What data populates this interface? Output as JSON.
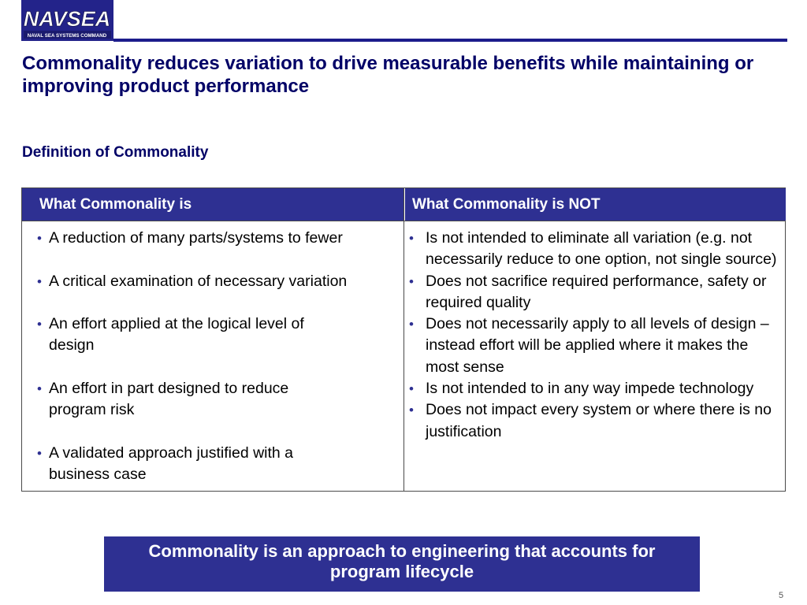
{
  "header": {
    "logo_text": "NAVSEA",
    "logo_subtext": "NAVAL SEA SYSTEMS COMMAND",
    "title": "Commonality reduces variation to drive measurable benefits while maintaining or improving product performance"
  },
  "section": {
    "heading": "Definition of Commonality"
  },
  "table": {
    "columns": [
      "What Commonality is",
      "What Commonality is NOT"
    ],
    "is": [
      "A reduction of many parts/systems to fewer",
      "A critical examination of necessary variation",
      "An effort applied at the logical level of\ndesign",
      "An effort in part designed to reduce\nprogram risk",
      "A validated approach justified with a\nbusiness case"
    ],
    "is_not": [
      "Is not intended to eliminate all variation (e.g. not necessarily reduce to one option, not single source)",
      "Does not sacrifice required performance, safety or required quality",
      "Does not necessarily apply to all levels of design – instead effort will be applied where it makes the most sense",
      "Is not intended to in any way impede technology",
      "Does not impact every system or where there is no justification"
    ]
  },
  "callout": {
    "text": "Commonality is an approach to engineering that accounts for program lifecycle"
  },
  "footer": {
    "page_number": "5"
  },
  "colors": {
    "brand_navy": "#2e3092",
    "title_navy": "#000066"
  }
}
